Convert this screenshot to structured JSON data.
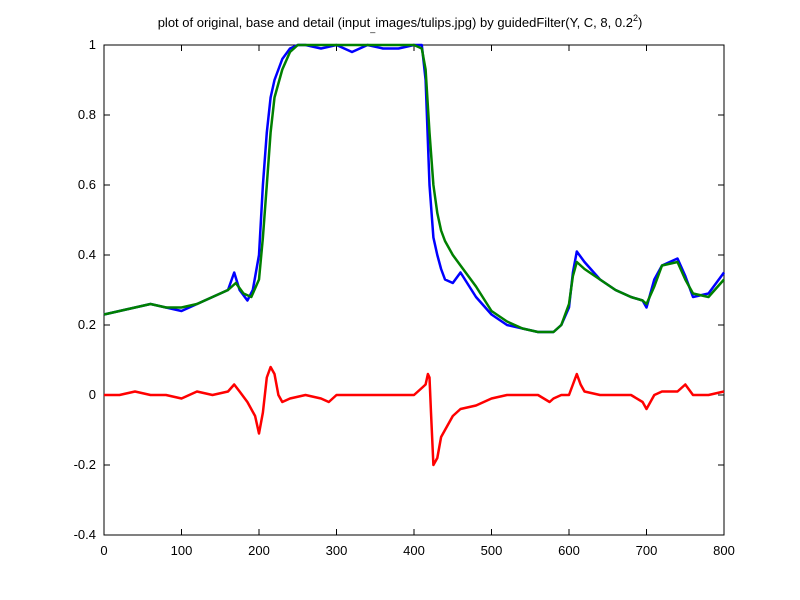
{
  "chart_data": {
    "type": "line",
    "title": "plot of original, base and detail (input",
    "title_underscore": "_",
    "title_rest": "images/tulips.jpg) by guidedFilter(Y, C, 8, 0.2",
    "title_sup": "2",
    "title_end": ")",
    "xlabel": "",
    "ylabel": "",
    "xlim": [
      0,
      800
    ],
    "ylim": [
      -0.4,
      1
    ],
    "grid": false,
    "x_ticks": [
      "0",
      "100",
      "200",
      "300",
      "400",
      "500",
      "600",
      "700",
      "800"
    ],
    "y_ticks": [
      "-0.4",
      "-0.2",
      "0",
      "0.2",
      "0.4",
      "0.6",
      "0.8",
      "1"
    ],
    "series": [
      {
        "color": "#0000ff",
        "x": [
          0,
          20,
          40,
          60,
          80,
          100,
          120,
          140,
          160,
          168,
          175,
          185,
          192,
          200,
          205,
          210,
          215,
          220,
          230,
          240,
          250,
          260,
          280,
          300,
          320,
          340,
          360,
          380,
          400,
          410,
          415,
          420,
          425,
          430,
          435,
          440,
          450,
          460,
          480,
          500,
          520,
          540,
          560,
          580,
          590,
          600,
          605,
          610,
          620,
          640,
          660,
          680,
          695,
          700,
          710,
          720,
          740,
          750,
          760,
          780,
          800
        ],
        "y": [
          0.23,
          0.24,
          0.25,
          0.26,
          0.25,
          0.24,
          0.26,
          0.28,
          0.3,
          0.35,
          0.3,
          0.27,
          0.3,
          0.4,
          0.6,
          0.75,
          0.85,
          0.9,
          0.96,
          0.99,
          1.0,
          1.0,
          0.99,
          1.0,
          0.98,
          1.0,
          0.99,
          0.99,
          1.0,
          1.0,
          0.9,
          0.6,
          0.45,
          0.4,
          0.36,
          0.33,
          0.32,
          0.35,
          0.28,
          0.23,
          0.2,
          0.19,
          0.18,
          0.18,
          0.2,
          0.25,
          0.35,
          0.41,
          0.38,
          0.33,
          0.3,
          0.28,
          0.27,
          0.25,
          0.33,
          0.37,
          0.39,
          0.34,
          0.28,
          0.29,
          0.35
        ]
      },
      {
        "color": "#008000",
        "x": [
          0,
          20,
          40,
          60,
          80,
          100,
          120,
          140,
          160,
          170,
          180,
          190,
          200,
          205,
          210,
          215,
          220,
          230,
          240,
          250,
          260,
          280,
          300,
          320,
          340,
          360,
          380,
          400,
          410,
          415,
          420,
          425,
          430,
          435,
          440,
          450,
          460,
          480,
          500,
          520,
          540,
          560,
          580,
          590,
          600,
          605,
          610,
          620,
          640,
          660,
          680,
          695,
          700,
          710,
          720,
          740,
          750,
          760,
          780,
          800
        ],
        "y": [
          0.23,
          0.24,
          0.25,
          0.26,
          0.25,
          0.25,
          0.26,
          0.28,
          0.3,
          0.32,
          0.29,
          0.28,
          0.33,
          0.45,
          0.6,
          0.75,
          0.85,
          0.93,
          0.98,
          1.0,
          1.0,
          1.0,
          1.0,
          1.0,
          1.0,
          1.0,
          1.0,
          1.0,
          0.99,
          0.93,
          0.75,
          0.6,
          0.52,
          0.47,
          0.44,
          0.4,
          0.37,
          0.31,
          0.24,
          0.21,
          0.19,
          0.18,
          0.18,
          0.2,
          0.26,
          0.34,
          0.38,
          0.36,
          0.33,
          0.3,
          0.28,
          0.27,
          0.26,
          0.31,
          0.37,
          0.38,
          0.33,
          0.29,
          0.28,
          0.33
        ]
      },
      {
        "color": "#ff0000",
        "x": [
          0,
          20,
          40,
          60,
          80,
          100,
          120,
          140,
          160,
          168,
          175,
          185,
          195,
          200,
          205,
          210,
          215,
          220,
          225,
          230,
          240,
          260,
          280,
          290,
          300,
          320,
          340,
          360,
          380,
          400,
          410,
          415,
          418,
          420,
          422,
          425,
          430,
          435,
          440,
          450,
          460,
          480,
          500,
          520,
          540,
          560,
          575,
          580,
          590,
          600,
          605,
          610,
          615,
          620,
          640,
          660,
          680,
          695,
          700,
          705,
          710,
          720,
          740,
          750,
          760,
          780,
          800
        ],
        "y": [
          0.0,
          0.0,
          0.01,
          0.0,
          0.0,
          -0.01,
          0.01,
          0.0,
          0.01,
          0.03,
          0.01,
          -0.02,
          -0.06,
          -0.11,
          -0.05,
          0.05,
          0.08,
          0.06,
          0.0,
          -0.02,
          -0.01,
          0.0,
          -0.01,
          -0.02,
          0.0,
          0.0,
          0.0,
          0.0,
          0.0,
          0.0,
          0.02,
          0.03,
          0.06,
          0.05,
          -0.05,
          -0.2,
          -0.18,
          -0.12,
          -0.1,
          -0.06,
          -0.04,
          -0.03,
          -0.01,
          0.0,
          0.0,
          0.0,
          -0.02,
          -0.01,
          0.0,
          0.0,
          0.03,
          0.06,
          0.03,
          0.01,
          0.0,
          0.0,
          0.0,
          -0.02,
          -0.04,
          -0.02,
          0.0,
          0.01,
          0.01,
          0.03,
          0.0,
          0.0,
          0.01
        ]
      }
    ]
  }
}
